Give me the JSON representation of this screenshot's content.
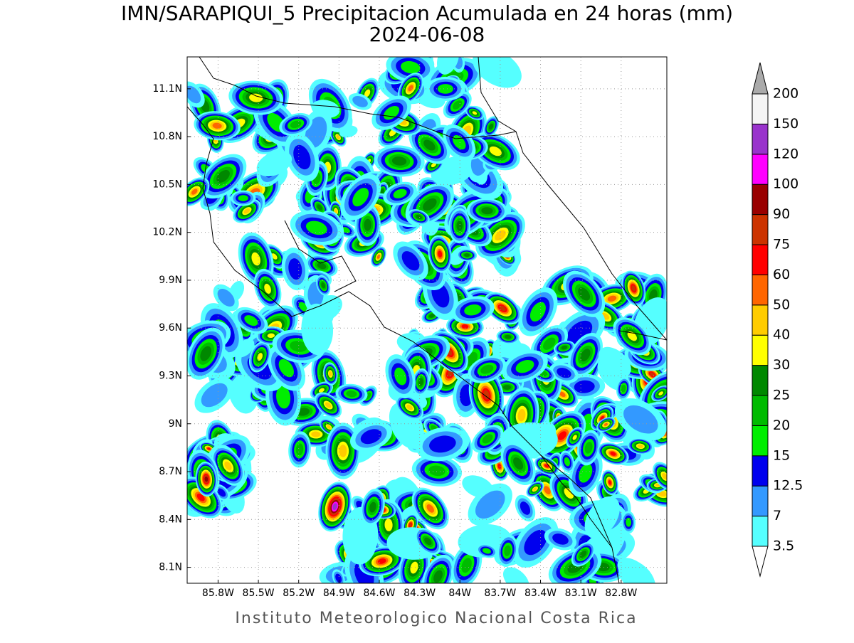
{
  "header": {
    "title": "IMN/SARAPIQUI_5 Precipitacion Acumulada en 24 horas (mm)",
    "date": "2024-06-08"
  },
  "map": {
    "xlim": [
      -86.03,
      -82.46
    ],
    "ylim": [
      8.0,
      11.3
    ],
    "lon_ticks": [
      {
        "value": -85.8,
        "label": "85.8W"
      },
      {
        "value": -85.5,
        "label": "85.5W"
      },
      {
        "value": -85.2,
        "label": "85.2W"
      },
      {
        "value": -84.9,
        "label": "84.9W"
      },
      {
        "value": -84.6,
        "label": "84.6W"
      },
      {
        "value": -84.3,
        "label": "84.3W"
      },
      {
        "value": -84.0,
        "label": "84W"
      },
      {
        "value": -83.7,
        "label": "83.7W"
      },
      {
        "value": -83.4,
        "label": "83.4W"
      },
      {
        "value": -83.1,
        "label": "83.1W"
      },
      {
        "value": -82.8,
        "label": "82.8W"
      }
    ],
    "lat_ticks": [
      {
        "value": 8.1,
        "label": "8.1N"
      },
      {
        "value": 8.4,
        "label": "8.4N"
      },
      {
        "value": 8.7,
        "label": "8.7N"
      },
      {
        "value": 9.0,
        "label": "9N"
      },
      {
        "value": 9.3,
        "label": "9.3N"
      },
      {
        "value": 9.6,
        "label": "9.6N"
      },
      {
        "value": 9.9,
        "label": "9.9N"
      },
      {
        "value": 10.2,
        "label": "10.2N"
      },
      {
        "value": 10.5,
        "label": "10.5N"
      },
      {
        "value": 10.8,
        "label": "10.8N"
      },
      {
        "value": 11.1,
        "label": "11.1N"
      }
    ]
  },
  "colorbar": {
    "levels": [
      3.5,
      7,
      12.5,
      15,
      20,
      25,
      30,
      40,
      50,
      60,
      75,
      90,
      100,
      120,
      150,
      200
    ],
    "colors": [
      "#ffffff",
      "#55ffff",
      "#3399ff",
      "#0000ee",
      "#00ee00",
      "#00bb00",
      "#008800",
      "#ffff00",
      "#ffcc00",
      "#ff6600",
      "#ff0000",
      "#cc3300",
      "#990000",
      "#ff00ff",
      "#9933cc",
      "#f5f5f5",
      "#aaaaaa"
    ]
  },
  "footer": "Instituto Meteorologico Nacional Costa Rica"
}
